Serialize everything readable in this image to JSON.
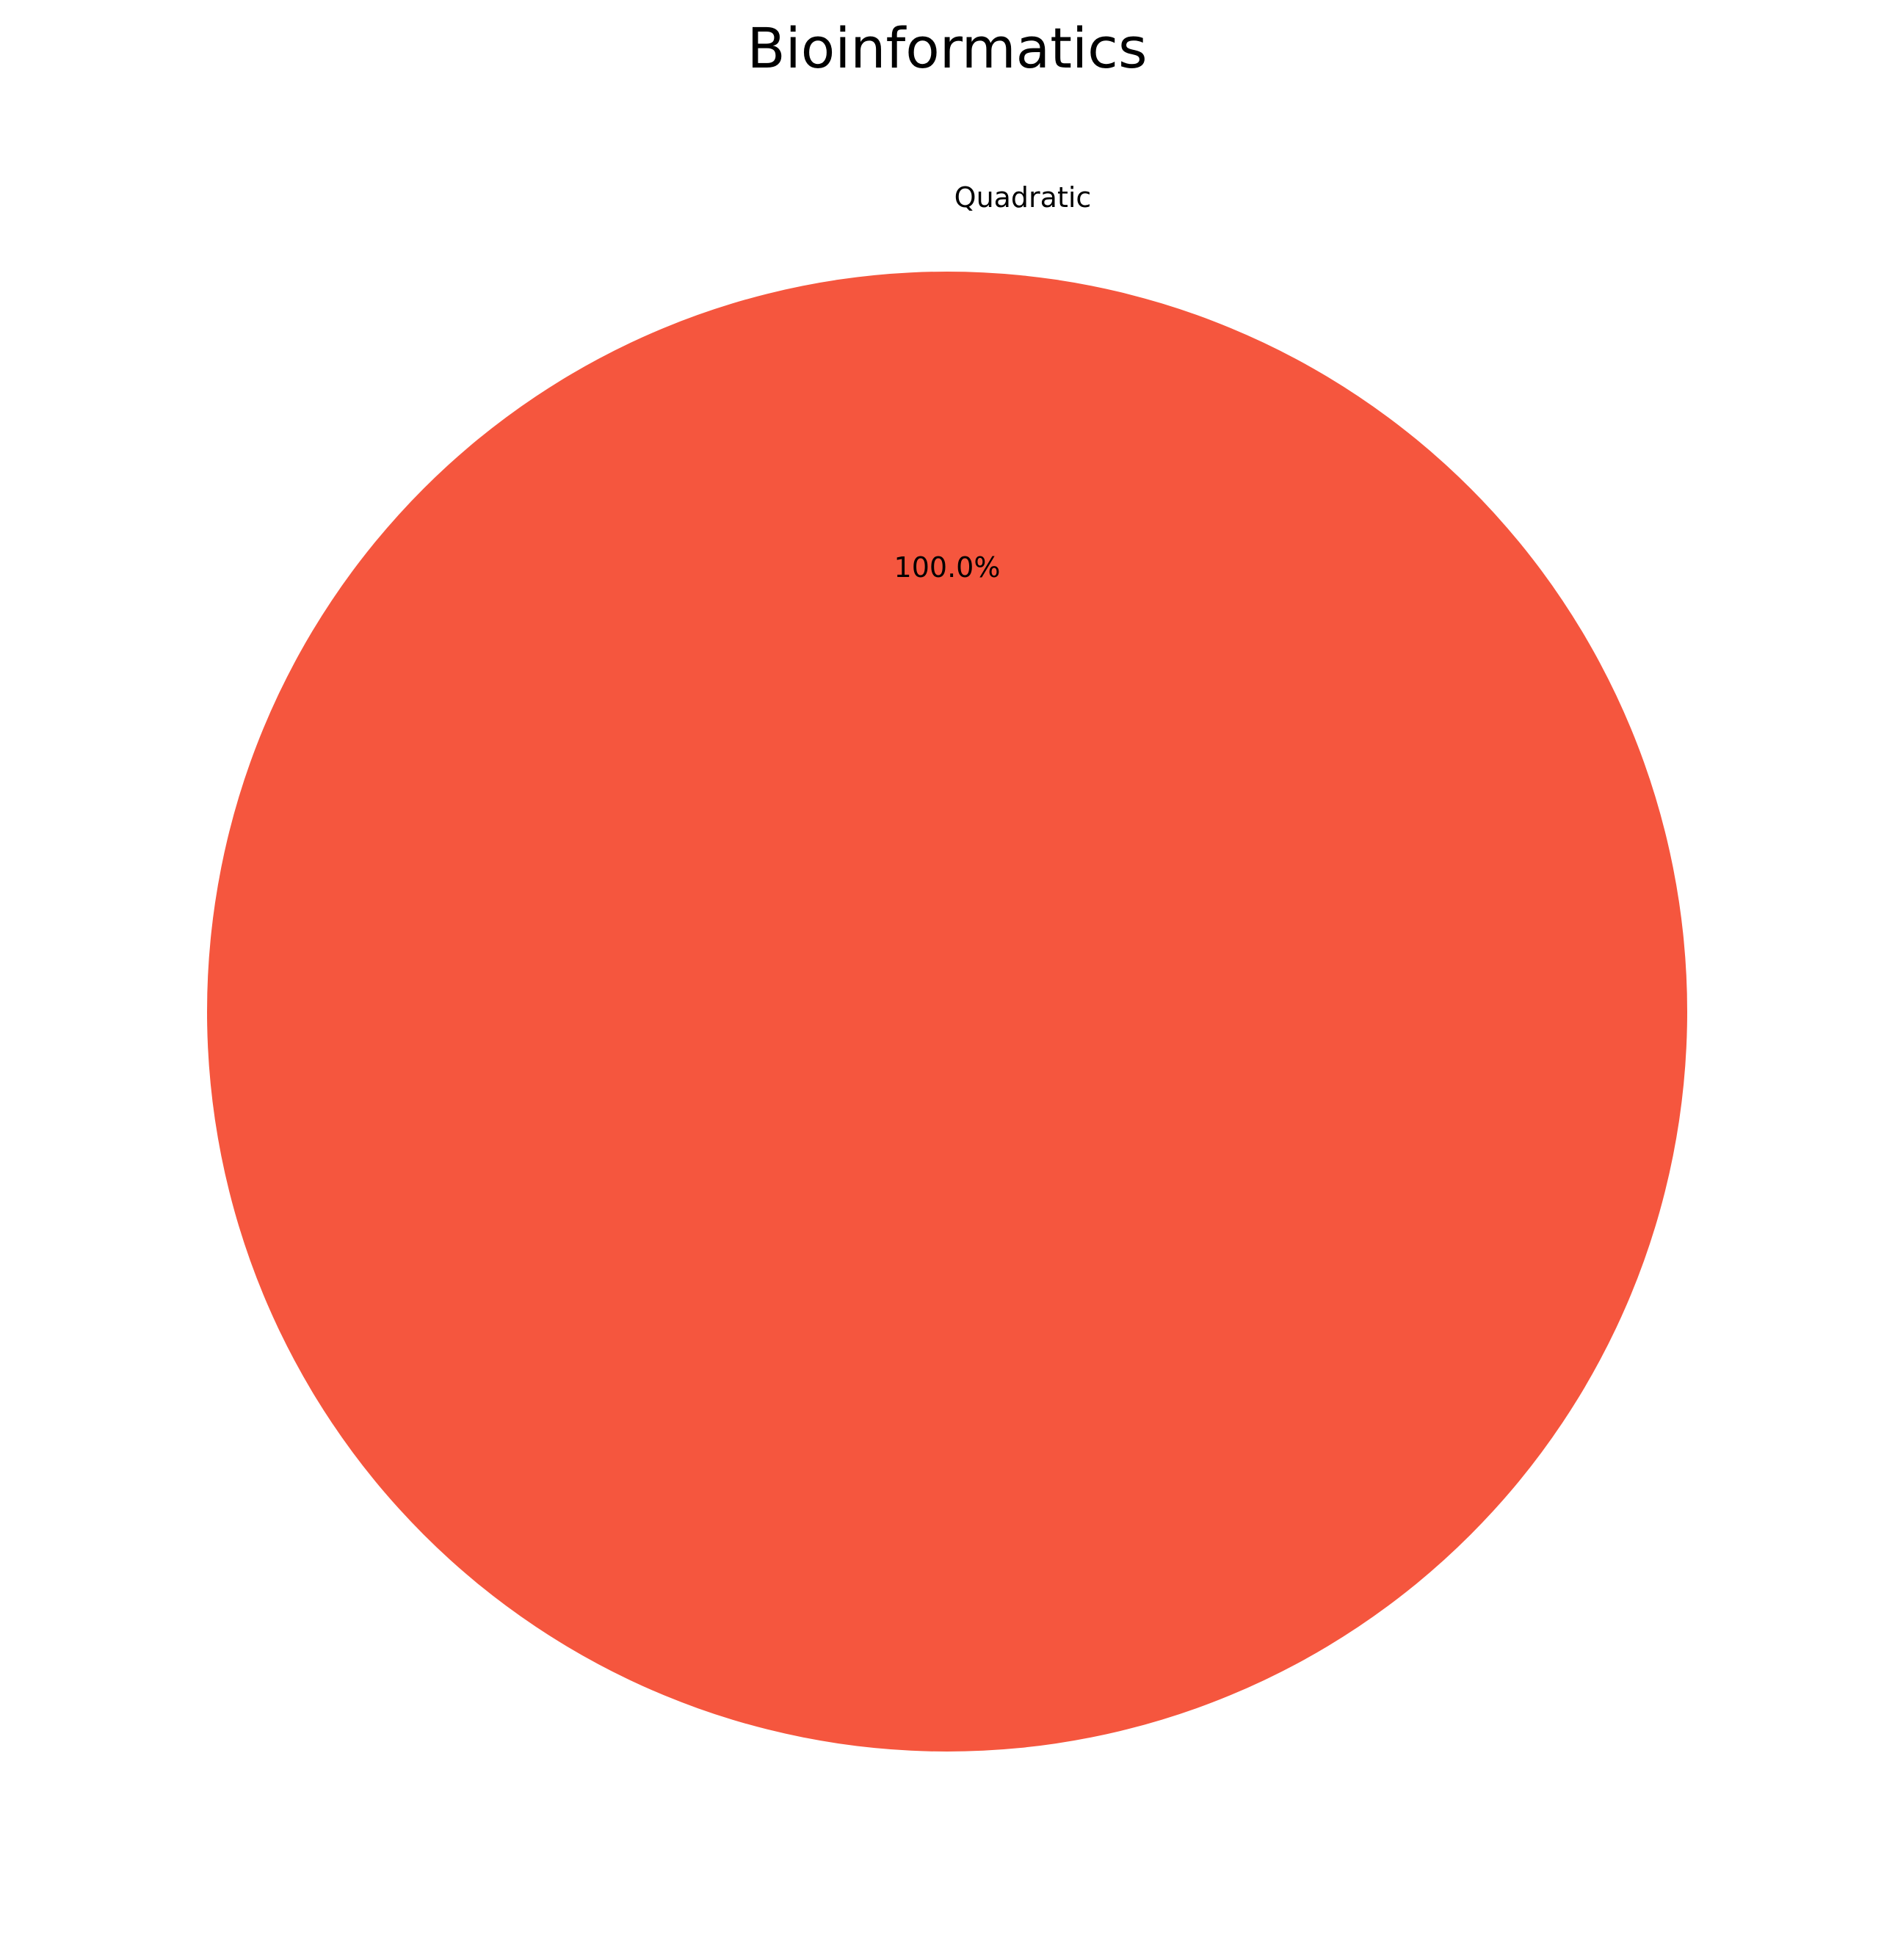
{
  "chart_data": {
    "type": "pie",
    "title": "Bioinformatics",
    "slices": [
      {
        "label": "Quadratic",
        "value": 100.0,
        "percent_label": "100.0%",
        "color": "#f5563e"
      }
    ]
  }
}
